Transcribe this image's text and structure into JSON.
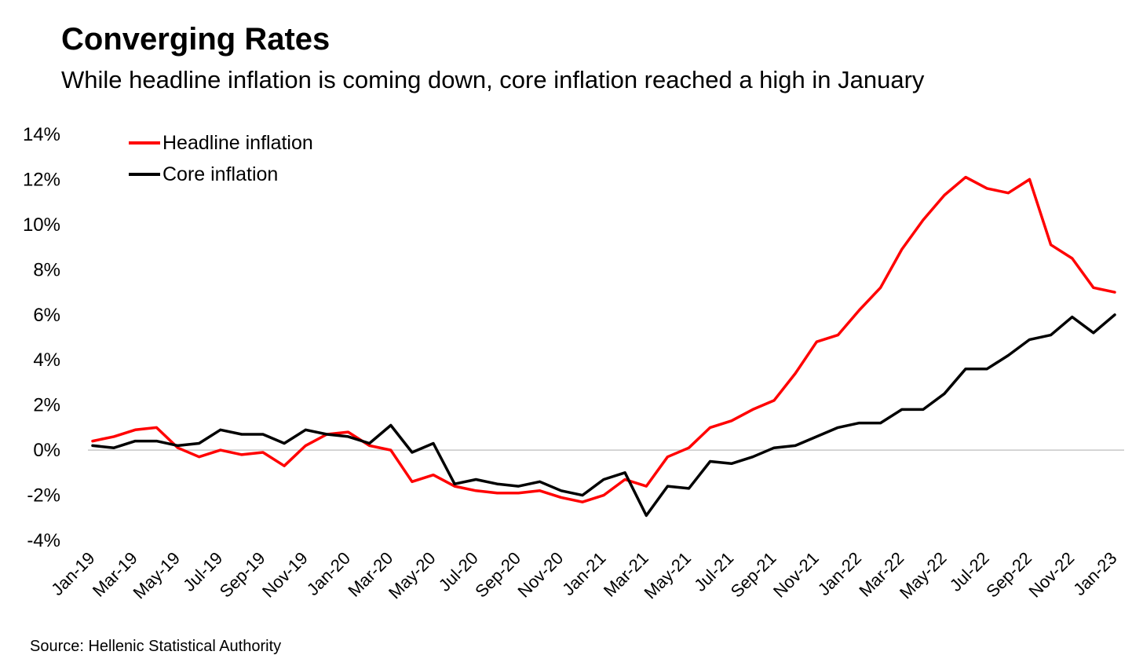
{
  "header": {
    "title": "Converging Rates",
    "subtitle": "While headline inflation is coming down, core inflation reached a high in January"
  },
  "footer": {
    "source": "Source: Hellenic Statistical Authority"
  },
  "chart_data": {
    "type": "line",
    "title": "",
    "xlabel": "",
    "ylabel": "",
    "ylim": [
      -4,
      14
    ],
    "ytick_step": 2,
    "y_tick_labels": [
      "-4%",
      "-2%",
      "0%",
      "2%",
      "4%",
      "6%",
      "8%",
      "10%",
      "12%",
      "14%"
    ],
    "zero_line": true,
    "grid": false,
    "legend_position": "top-left",
    "categories": [
      "Jan-19",
      "Feb-19",
      "Mar-19",
      "Apr-19",
      "May-19",
      "Jun-19",
      "Jul-19",
      "Aug-19",
      "Sep-19",
      "Oct-19",
      "Nov-19",
      "Dec-19",
      "Jan-20",
      "Feb-20",
      "Mar-20",
      "Apr-20",
      "May-20",
      "Jun-20",
      "Jul-20",
      "Aug-20",
      "Sep-20",
      "Oct-20",
      "Nov-20",
      "Dec-20",
      "Jan-21",
      "Feb-21",
      "Mar-21",
      "Apr-21",
      "May-21",
      "Jun-21",
      "Jul-21",
      "Aug-21",
      "Sep-21",
      "Oct-21",
      "Nov-21",
      "Dec-21",
      "Jan-22",
      "Feb-22",
      "Mar-22",
      "Apr-22",
      "May-22",
      "Jun-22",
      "Jul-22",
      "Aug-22",
      "Sep-22",
      "Oct-22",
      "Nov-22",
      "Dec-22",
      "Jan-23"
    ],
    "x_tick_labels": [
      "Jan-19",
      "Mar-19",
      "May-19",
      "Jul-19",
      "Sep-19",
      "Nov-19",
      "Jan-20",
      "Mar-20",
      "May-20",
      "Jul-20",
      "Sep-20",
      "Nov-20",
      "Jan-21",
      "Mar-21",
      "May-21",
      "Jul-21",
      "Sep-21",
      "Nov-21",
      "Jan-22",
      "Mar-22",
      "May-22",
      "Jul-22",
      "Sep-22",
      "Nov-22",
      "Jan-23"
    ],
    "series": [
      {
        "name": "Headline inflation",
        "color": "#ff0000",
        "values": [
          0.4,
          0.6,
          0.9,
          1.0,
          0.1,
          -0.3,
          0.0,
          -0.2,
          -0.1,
          -0.7,
          0.2,
          0.7,
          0.8,
          0.2,
          0.0,
          -1.4,
          -1.1,
          -1.6,
          -1.8,
          -1.9,
          -1.9,
          -1.8,
          -2.1,
          -2.3,
          -2.0,
          -1.3,
          -1.6,
          -0.3,
          0.1,
          1.0,
          1.3,
          1.8,
          2.2,
          3.4,
          4.8,
          5.1,
          6.2,
          7.2,
          8.9,
          10.2,
          11.3,
          12.1,
          11.6,
          11.4,
          12.0,
          9.1,
          8.5,
          7.2,
          7.0
        ]
      },
      {
        "name": "Core inflation",
        "color": "#000000",
        "values": [
          0.2,
          0.1,
          0.4,
          0.4,
          0.2,
          0.3,
          0.9,
          0.7,
          0.7,
          0.3,
          0.9,
          0.7,
          0.6,
          0.3,
          1.1,
          -0.1,
          0.3,
          -1.5,
          -1.3,
          -1.5,
          -1.6,
          -1.4,
          -1.8,
          -2.0,
          -1.3,
          -1.0,
          -2.9,
          -1.6,
          -1.7,
          -0.5,
          -0.6,
          -0.3,
          0.1,
          0.2,
          0.6,
          1.0,
          1.2,
          1.2,
          1.8,
          1.8,
          2.5,
          3.6,
          3.6,
          4.2,
          4.9,
          5.1,
          5.9,
          5.2,
          6.0
        ]
      }
    ]
  }
}
